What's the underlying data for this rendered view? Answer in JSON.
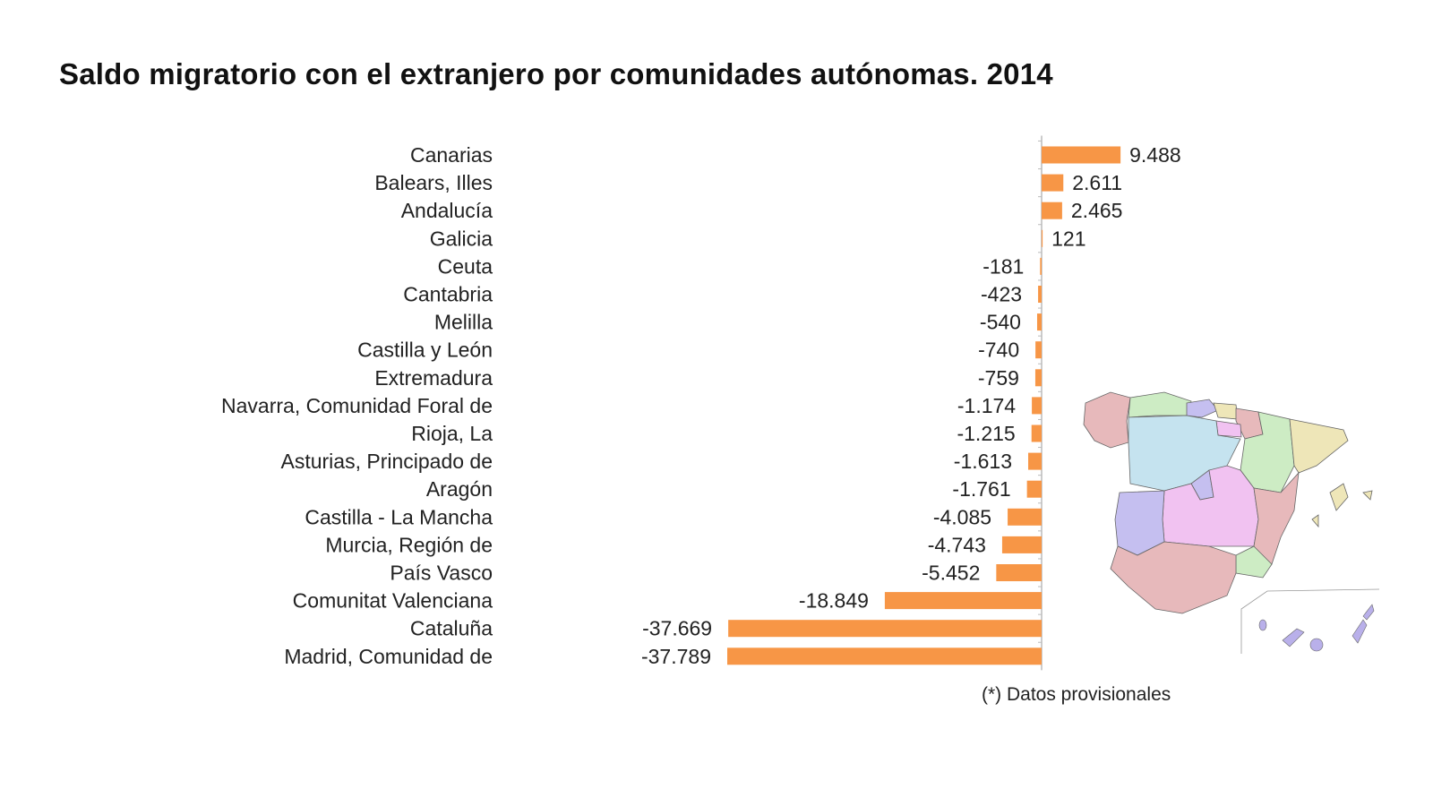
{
  "chart_data": {
    "type": "bar",
    "orientation": "horizontal",
    "title": "Saldo migratorio con el extranjero por comunidades autónomas. 2014",
    "categories": [
      "Canarias",
      "Balears, Illes",
      "Andalucía",
      "Galicia",
      "Ceuta",
      "Cantabria",
      "Melilla",
      "Castilla y León",
      "Extremadura",
      "Navarra, Comunidad Foral de",
      "Rioja, La",
      "Asturias, Principado de",
      "Aragón",
      "Castilla - La Mancha",
      "Murcia, Región de",
      "País Vasco",
      "Comunitat Valenciana",
      "Cataluña",
      "Madrid, Comunidad de"
    ],
    "values": [
      9488,
      2611,
      2465,
      121,
      -181,
      -423,
      -540,
      -740,
      -759,
      -1174,
      -1215,
      -1613,
      -1761,
      -4085,
      -4743,
      -5452,
      -18849,
      -37669,
      -37789
    ],
    "data_labels": [
      "9.488",
      "2.611",
      "2.465",
      "121",
      "-181",
      "-423",
      "-540",
      "-740",
      "-759",
      "-1.174",
      "-1.215",
      "-1.613",
      "-1.761",
      "-4.085",
      "-4.743",
      "-5.452",
      "-18.849",
      "-37.669",
      "-37.789"
    ],
    "xlim": [
      -37789,
      9488
    ],
    "grid": false,
    "legend": "none",
    "bar_color": "#F79646",
    "annotation": "(*) Datos provisionales"
  }
}
